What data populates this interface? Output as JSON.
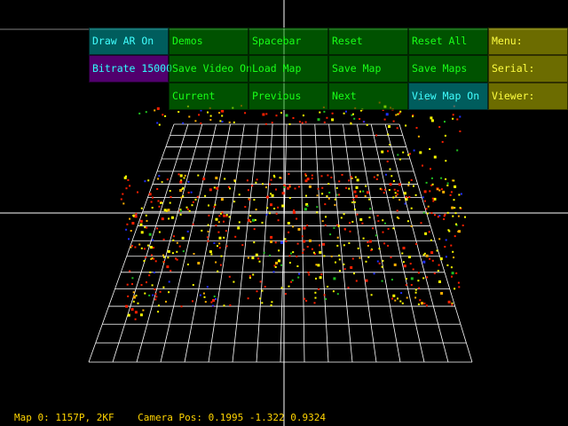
{
  "menu": {
    "rows": [
      [
        {
          "label": "Draw AR On",
          "style": "teal"
        },
        {
          "label": "Demos",
          "style": "green"
        },
        {
          "label": "Spacebar",
          "style": "green"
        },
        {
          "label": "Reset",
          "style": "green"
        },
        {
          "label": "Reset All",
          "style": "green"
        },
        {
          "label": "Menu:",
          "style": "yellow"
        }
      ],
      [
        {
          "label": "Bitrate 15000",
          "style": "purple"
        },
        {
          "label": "Save Video On",
          "style": "green"
        },
        {
          "label": "Load Map",
          "style": "green"
        },
        {
          "label": "Save Map",
          "style": "green"
        },
        {
          "label": "Save Maps",
          "style": "green"
        },
        {
          "label": "Serial:",
          "style": "yellow"
        }
      ],
      [
        null,
        {
          "label": "Current",
          "style": "green"
        },
        {
          "label": "Previous",
          "style": "green"
        },
        {
          "label": "Next",
          "style": "green"
        },
        {
          "label": "View Map On",
          "style": "teal"
        },
        {
          "label": "Viewer:",
          "style": "yellow"
        }
      ]
    ]
  },
  "status": {
    "map": "Map 0: 1157P, 2KF",
    "camera": "Camera Pos: 0.1995 -1.322 0.9324"
  },
  "colors": {
    "background": "#000000",
    "grid": "#ffffff",
    "axes": "#ffffff",
    "status_text": "#ffd400",
    "point_colors": [
      "#ff2000",
      "#ffff00",
      "#ffb000",
      "#20c020",
      "#2030ff"
    ]
  }
}
